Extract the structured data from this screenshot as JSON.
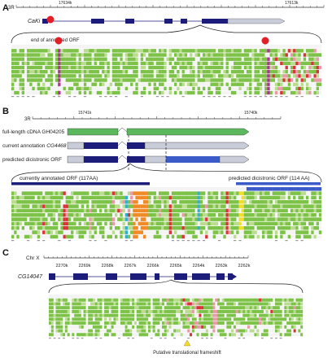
{
  "panels": {
    "a": {
      "letter": "A",
      "chrom": "3R",
      "coord_left": "17634k",
      "coord_right": "17613k",
      "gene": "CaKi",
      "note": "end of annotated ORF"
    },
    "b": {
      "letter": "B",
      "chrom": "3R",
      "coord_left": "15741k",
      "coord_right": "15740k",
      "track1": "full-length cDNA GH04205",
      "track2_prefix": "current annotation ",
      "track2_gene": "CG4468",
      "track3": "predicted dicistronic ORF",
      "orf_left": "currently annotated ORF (117AA)",
      "orf_right": "predicted dicistronic ORF (114 AA)"
    },
    "c": {
      "letter": "C",
      "chrom": "Chr X",
      "ticks": [
        "2270k",
        "2269k",
        "2268k",
        "2267k",
        "2266k",
        "2265k",
        "2264k",
        "2263k",
        "2262k"
      ],
      "gene": "CG14047",
      "note": "Putative translational frameshift"
    }
  },
  "colors": {
    "exon": "#1c1c7a",
    "utr": "#c9ccd9",
    "cdna": "#5cb85c",
    "cons_green": "#7cc247",
    "cons_light": "#b9dc8f",
    "red": "#d9333a",
    "pink": "#e89aa6",
    "cyan": "#2fb0cc",
    "orange": "#f08a24",
    "yellow": "#f2dd2a",
    "magenta": "#b0339a",
    "highlight_blue": "#3b5bc9"
  }
}
